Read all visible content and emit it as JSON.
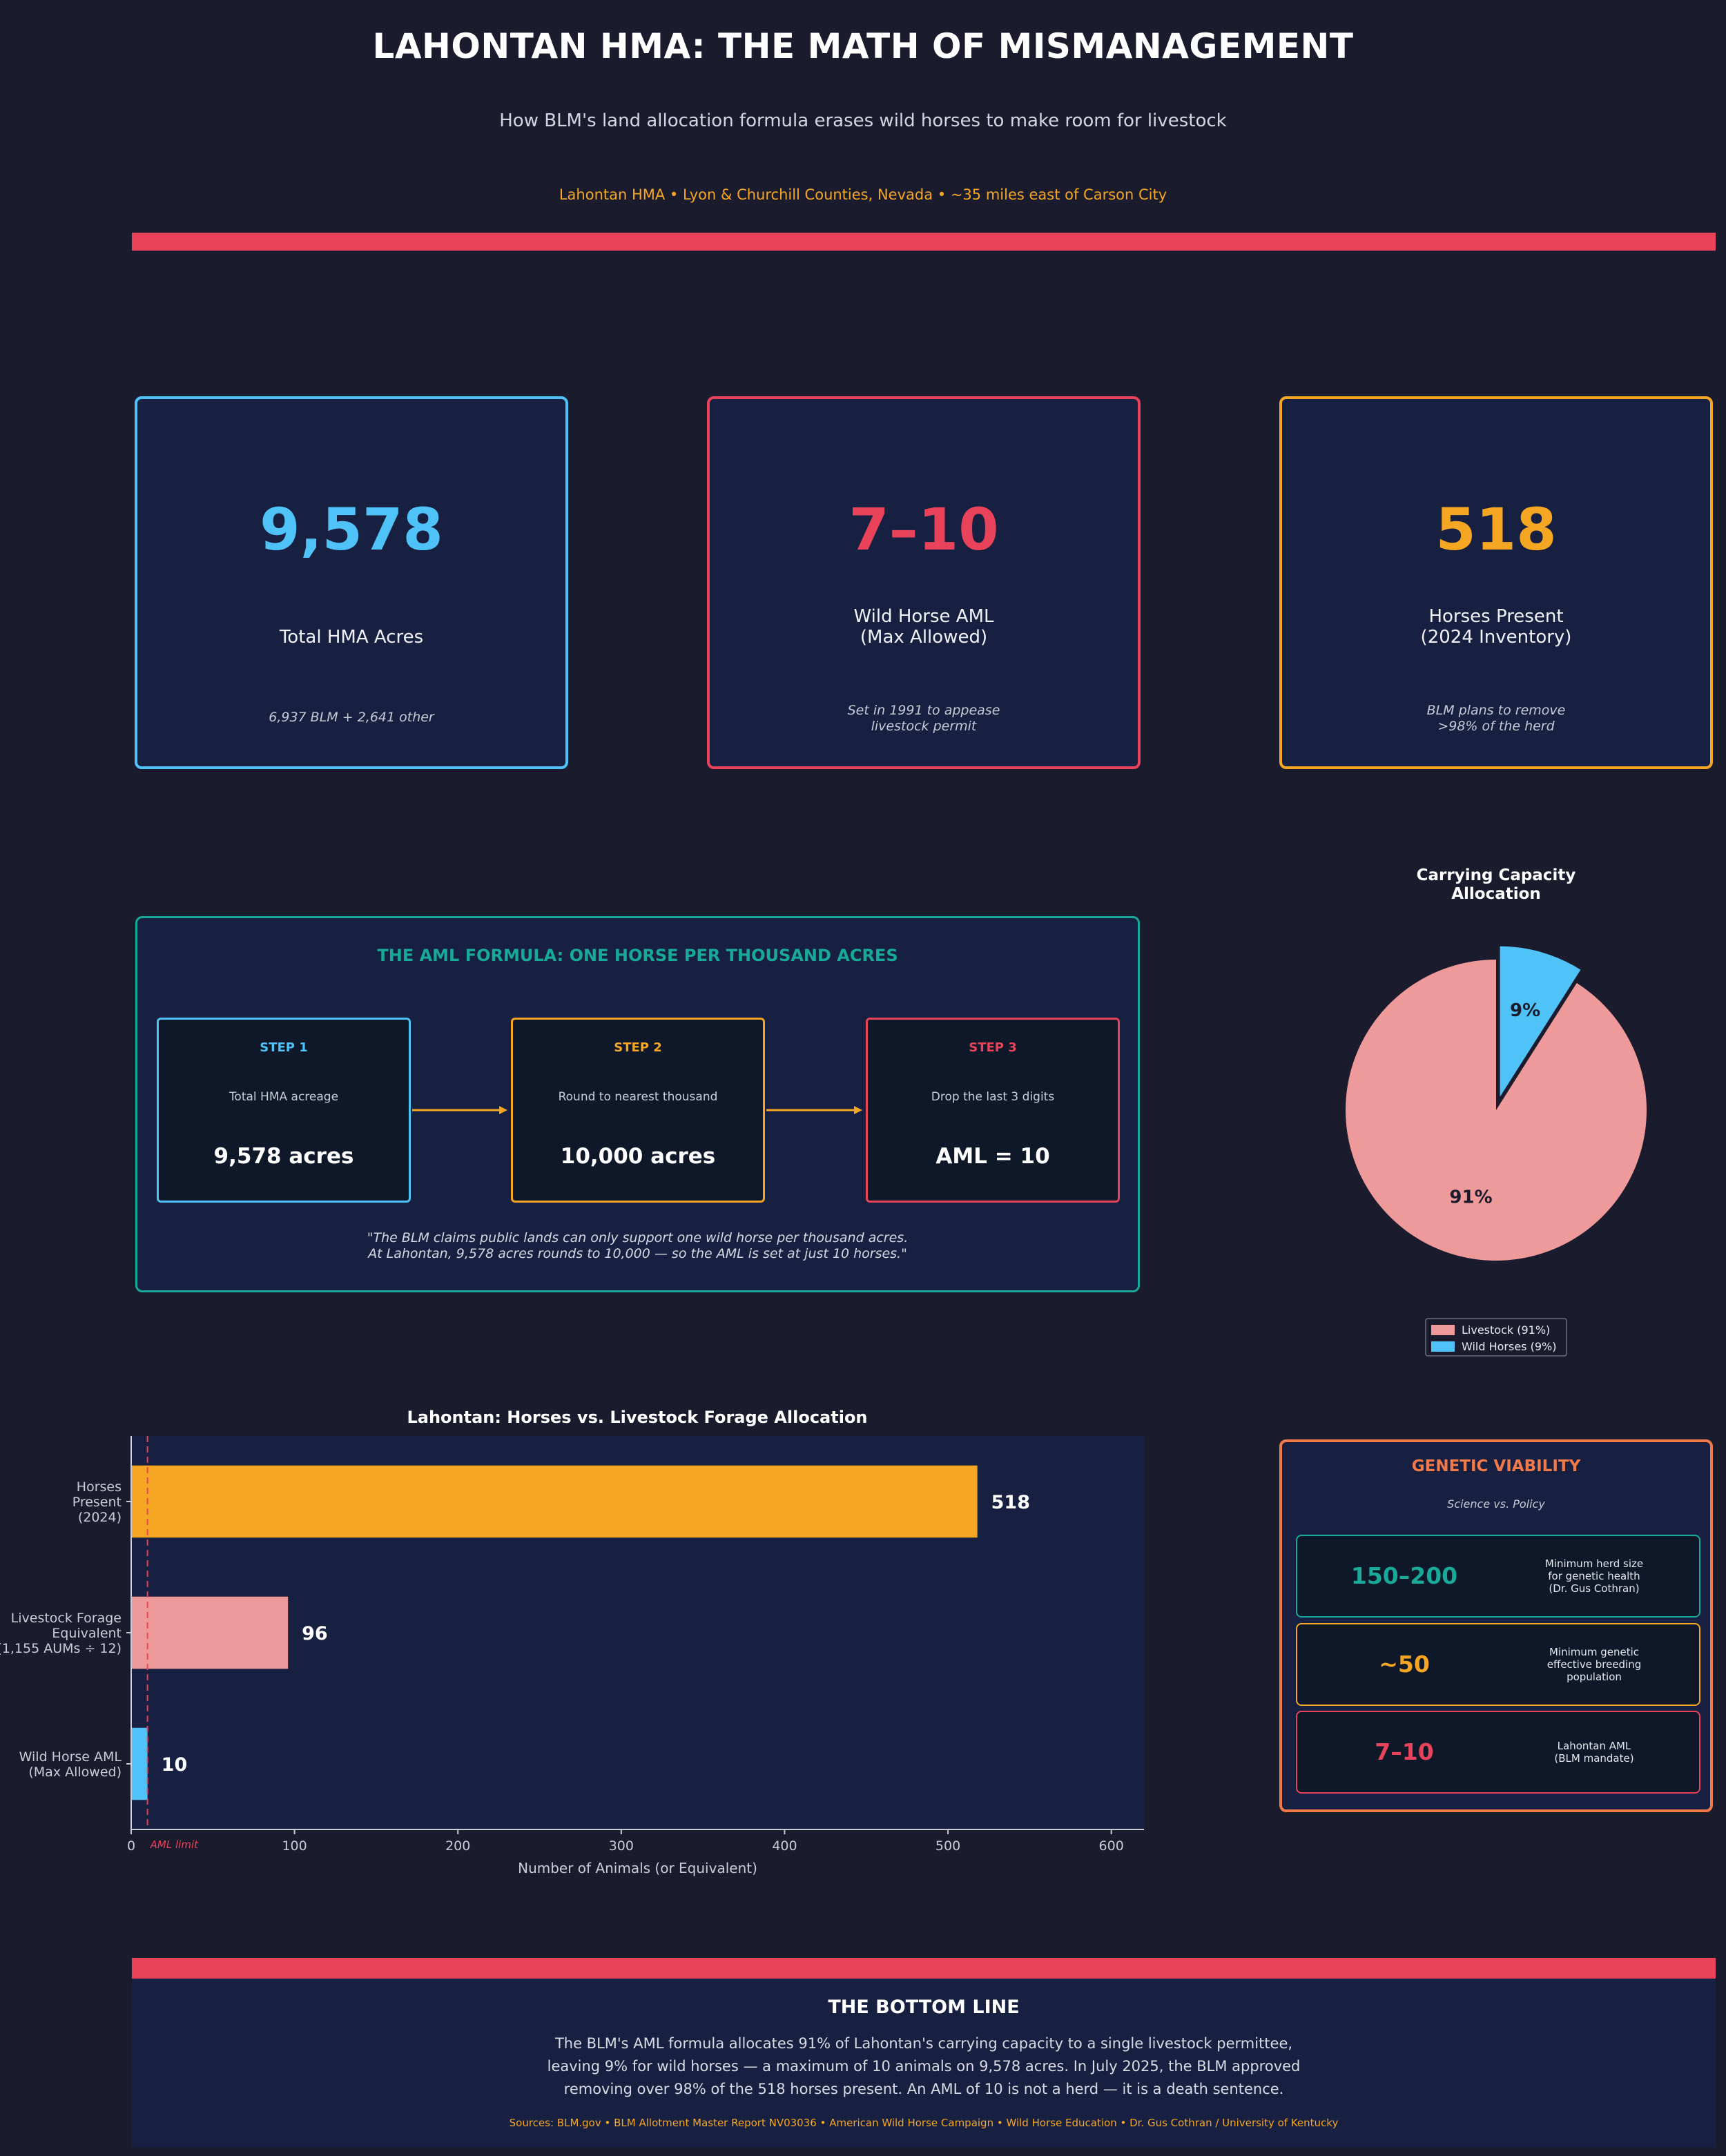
{
  "header": {
    "title": "LAHONTAN HMA: THE MATH OF MISMANAGEMENT",
    "subtitle": "How BLM's land allocation formula erases wild horses to make room for livestock",
    "location": "Lahontan HMA  •  Lyon & Churchill Counties, Nevada  •  ~35 miles east of Carson City"
  },
  "stats": [
    {
      "value": "9,578",
      "label": "Total HMA Acres",
      "note": "6,937 BLM  +  2,641 other",
      "color": "#4fc3f7"
    },
    {
      "value": "7–10",
      "label": "Wild Horse AML\n(Max Allowed)",
      "note": "Set in 1991 to appease\nlivestock permit",
      "color": "#e8435a"
    },
    {
      "value": "518",
      "label": "Horses Present\n(2024 Inventory)",
      "note": "BLM plans to remove\n>98% of the herd",
      "color": "#f5a623"
    }
  ],
  "formula": {
    "title": "THE AML FORMULA: ONE HORSE PER THOUSAND ACRES",
    "steps": [
      {
        "label": "STEP 1",
        "desc": "Total HMA acreage",
        "value": "9,578 acres",
        "color": "#4fc3f7"
      },
      {
        "label": "STEP 2",
        "desc": "Round to nearest thousand",
        "value": "10,000 acres",
        "color": "#f5a623"
      },
      {
        "label": "STEP 3",
        "desc": "Drop the last 3 digits",
        "value": "AML = 10",
        "color": "#e8435a"
      }
    ],
    "quote": "\"The BLM claims public lands can only support one wild horse per thousand acres.\nAt Lahontan, 9,578 acres rounds to 10,000 — so the AML is set at just 10 horses.\"",
    "accent": "#18a999"
  },
  "chart_data": [
    {
      "type": "pie",
      "title": "Carrying Capacity\nAllocation",
      "labels": [
        "Livestock",
        "Wild Horses"
      ],
      "values": [
        91,
        9
      ],
      "slice_labels": [
        "91%",
        "9%"
      ],
      "legend": [
        "Livestock  (91%)",
        "Wild Horses  (9%)"
      ],
      "legend_position": "bottom",
      "colors": [
        "#ef9a9a",
        "#4fc3f7"
      ],
      "exploded": "Wild Horses"
    },
    {
      "type": "bar",
      "orientation": "horizontal",
      "title": "Lahontan: Horses vs. Livestock Forage Allocation",
      "categories": [
        "Horses\nPresent\n(2024)",
        "Livestock Forage\nEquivalent\n(1,155 AUMs ÷ 12)",
        "Wild Horse AML\n(Max Allowed)"
      ],
      "values": [
        518,
        96,
        10
      ],
      "value_labels": [
        "518",
        "96",
        "10"
      ],
      "colors": [
        "#f5a623",
        "#ef9a9a",
        "#4fc3f7"
      ],
      "xlabel": "Number of Animals (or Equivalent)",
      "xlim": [
        0,
        620
      ],
      "xticks": [
        0,
        100,
        200,
        300,
        400,
        500,
        600
      ],
      "xtick_labels": [
        "0",
        "100",
        "200",
        "300",
        "400",
        "500",
        "600"
      ],
      "reference_line": {
        "value": 10,
        "label": "AML limit",
        "color": "#e8435a"
      }
    }
  ],
  "genetic": {
    "title": "GENETIC VIABILITY",
    "subtitle": "Science vs. Policy",
    "accent": "#f07a4a",
    "rows": [
      {
        "value": "150–200",
        "desc": "Minimum herd size\nfor genetic health\n(Dr. Gus Cothran)",
        "color": "#18a999"
      },
      {
        "value": "~50",
        "desc": "Minimum genetic\neffective breeding\npopulation",
        "color": "#f5a623"
      },
      {
        "value": "7–10",
        "desc": "Lahontan AML\n(BLM mandate)",
        "color": "#e8435a"
      }
    ]
  },
  "bottom": {
    "title": "THE BOTTOM LINE",
    "text": "The BLM's AML formula allocates 91% of Lahontan's carrying capacity to a single livestock permittee,\nleaving 9% for wild horses — a maximum of 10 animals on 9,578 acres. In July 2025, the BLM approved\nremoving over 98% of the 518 horses present. An AML of 10 is not a herd — it is a death sentence.",
    "sources": "Sources: BLM.gov  •  BLM Allotment Master Report NV03036  •  American Wild Horse Campaign  •  Wild Horse Education  •  Dr. Gus Cothran / University of Kentucky"
  }
}
